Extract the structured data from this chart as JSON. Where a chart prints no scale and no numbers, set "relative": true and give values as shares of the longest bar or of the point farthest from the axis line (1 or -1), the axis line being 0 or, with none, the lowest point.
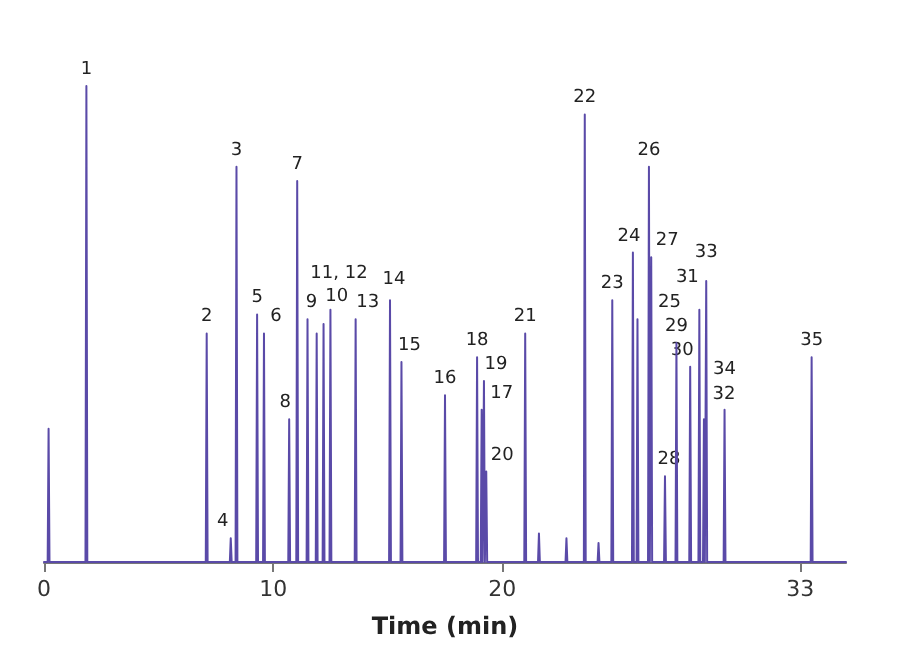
{
  "chart_data": {
    "type": "line",
    "xlabel": "Time (min)",
    "relative": true,
    "xlim": [
      0,
      35
    ],
    "xticks": [
      0,
      10,
      20,
      33
    ],
    "grid": false,
    "marker": "none",
    "line_style": "solid",
    "series": [
      {
        "color": "#5a4aa8",
        "x": [
          0,
          0.16,
          0.2,
          0.24,
          1.81,
          1.85,
          1.89,
          7.06,
          7.1,
          7.14,
          8.11,
          8.15,
          8.19,
          8.36,
          8.4,
          8.44,
          9.26,
          9.3,
          9.34,
          9.56,
          9.6,
          9.64,
          10.66,
          10.7,
          10.74,
          11.01,
          11.05,
          11.09,
          11.46,
          11.5,
          11.54,
          11.86,
          11.9,
          11.94,
          12.16,
          12.2,
          12.24,
          12.46,
          12.5,
          12.54,
          13.56,
          13.6,
          13.64,
          15.06,
          15.1,
          15.14,
          15.56,
          15.6,
          15.64,
          17.46,
          17.5,
          17.54,
          18.86,
          18.9,
          18.94,
          19.06,
          19.1,
          19.14,
          19.16,
          19.2,
          19.24,
          19.26,
          19.3,
          19.34,
          20.96,
          21,
          21.04,
          21.56,
          21.6,
          21.64,
          22.76,
          22.8,
          22.84,
          23.56,
          23.6,
          23.64,
          24.16,
          24.2,
          24.24,
          24.76,
          24.8,
          24.84,
          25.66,
          25.7,
          25.74,
          25.86,
          25.9,
          25.94,
          26.36,
          26.4,
          26.44,
          26.46,
          26.5,
          26.54,
          27.06,
          27.1,
          27.14,
          27.56,
          27.6,
          27.64,
          28.16,
          28.2,
          28.24,
          28.56,
          28.6,
          28.64,
          28.76,
          28.8,
          28.84,
          28.86,
          28.9,
          28.94,
          29.66,
          29.7,
          29.74,
          33.46,
          33.5,
          33.54,
          35
        ],
        "values": [
          0,
          0,
          0.28,
          0,
          0,
          1,
          0,
          0,
          0.48,
          0,
          0,
          0.05,
          0,
          0,
          0.83,
          0,
          0,
          0.52,
          0,
          0,
          0.48,
          0,
          0,
          0.3,
          0,
          0,
          0.8,
          0,
          0,
          0.51,
          0,
          0,
          0.48,
          0,
          0,
          0.5,
          0,
          0,
          0.53,
          0,
          0,
          0.51,
          0,
          0,
          0.55,
          0,
          0,
          0.42,
          0,
          0,
          0.35,
          0,
          0,
          0.43,
          0,
          0,
          0.32,
          0,
          0,
          0.38,
          0,
          0,
          0.19,
          0,
          0,
          0.48,
          0,
          0,
          0.06,
          0,
          0,
          0.05,
          0,
          0,
          0.94,
          0,
          0,
          0.04,
          0,
          0,
          0.55,
          0,
          0,
          0.65,
          0,
          0,
          0.51,
          0,
          0,
          0.83,
          0,
          0,
          0.64,
          0,
          0,
          0.18,
          0,
          0,
          0.46,
          0,
          0,
          0.41,
          0,
          0,
          0.53,
          0,
          0,
          0.3,
          0,
          0,
          0.59,
          0,
          0,
          0.32,
          0,
          0,
          0.43,
          0,
          0
        ]
      }
    ],
    "annotations": [
      {
        "text": "1",
        "x": 1.85,
        "y": 1
      },
      {
        "text": "2",
        "x": 7.1,
        "y": 0.48
      },
      {
        "text": "3",
        "x": 8.4,
        "y": 0.83
      },
      {
        "text": "4",
        "x": 8.15,
        "y": 0.05
      },
      {
        "text": "5",
        "x": 9.3,
        "y": 0.52
      },
      {
        "text": "6",
        "x": 9.6,
        "y": 0.48
      },
      {
        "text": "7",
        "x": 11.05,
        "y": 0.8
      },
      {
        "text": "8",
        "x": 10.7,
        "y": 0.3
      },
      {
        "text": "9",
        "x": 11.5,
        "y": 0.51
      },
      {
        "text": "10",
        "x": 11.9,
        "y": 0.48
      },
      {
        "text": "11, 12",
        "x": 12.35,
        "y": 0.53
      },
      {
        "text": "13",
        "x": 13.6,
        "y": 0.51
      },
      {
        "text": "14",
        "x": 15.1,
        "y": 0.55
      },
      {
        "text": "15",
        "x": 15.6,
        "y": 0.42
      },
      {
        "text": "16",
        "x": 17.5,
        "y": 0.35
      },
      {
        "text": "18",
        "x": 18.9,
        "y": 0.43
      },
      {
        "text": "17",
        "x": 19.1,
        "y": 0.32
      },
      {
        "text": "19",
        "x": 19.2,
        "y": 0.38
      },
      {
        "text": "20",
        "x": 19.3,
        "y": 0.19
      },
      {
        "text": "21",
        "x": 21,
        "y": 0.48
      },
      {
        "text": "22",
        "x": 23.6,
        "y": 0.94
      },
      {
        "text": "23",
        "x": 24.8,
        "y": 0.55
      },
      {
        "text": "24",
        "x": 25.7,
        "y": 0.65
      },
      {
        "text": "25",
        "x": 25.9,
        "y": 0.51
      },
      {
        "text": "26",
        "x": 26.4,
        "y": 0.83
      },
      {
        "text": "27",
        "x": 26.5,
        "y": 0.64
      },
      {
        "text": "28",
        "x": 27.1,
        "y": 0.18
      },
      {
        "text": "29",
        "x": 27.6,
        "y": 0.46
      },
      {
        "text": "30",
        "x": 28.2,
        "y": 0.41
      },
      {
        "text": "31",
        "x": 28.6,
        "y": 0.53
      },
      {
        "text": "32",
        "x": 28.8,
        "y": 0.3
      },
      {
        "text": "33",
        "x": 28.9,
        "y": 0.59
      },
      {
        "text": "34",
        "x": 29.7,
        "y": 0.32
      },
      {
        "text": "35",
        "x": 33.5,
        "y": 0.43
      }
    ]
  }
}
